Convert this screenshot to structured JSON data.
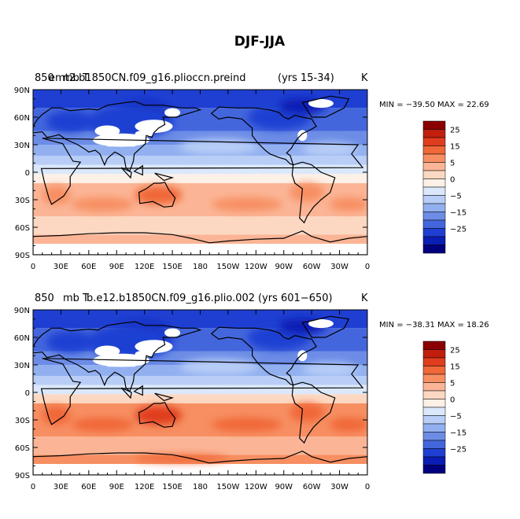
{
  "title": "DJF-JJA",
  "panels": [
    {
      "label_a": "850",
      "label_overlap_a": "mb T",
      "label_overlap_b": "emt2.b1850CN.f09_g16.plioccn.preind",
      "label_tail": "(yrs 15-34)",
      "units": "K",
      "minmax": "MIN = −39.50 MAX =  22.69",
      "variant": 0
    },
    {
      "label_a": "850",
      "label_overlap_a": "mb T",
      "label_overlap_b": "b.e12.b1850CN.f09_g16.plio.002",
      "label_tail": "(yrs 601−650)",
      "units": "K",
      "minmax": "MIN = −38.31 MAX =  18.26",
      "variant": 1
    }
  ],
  "lat_ticks": [
    "90N",
    "60N",
    "30N",
    "0",
    "30S",
    "60S",
    "90S"
  ],
  "lon_ticks": [
    "0",
    "30E",
    "60E",
    "90E",
    "120E",
    "150E",
    "180",
    "150W",
    "120W",
    "90W",
    "60W",
    "30W",
    "0"
  ],
  "colorbar": {
    "labels": [
      "25",
      "15",
      "5",
      "0",
      "−5",
      "−15",
      "−25"
    ],
    "colors": [
      "#8b0000",
      "#c21e0e",
      "#e03c1e",
      "#f06838",
      "#f78f62",
      "#fbb596",
      "#fcd8c2",
      "#fdf0e6",
      "#dbe8fb",
      "#b8cef7",
      "#92b0f0",
      "#6c8ce6",
      "#4466dd",
      "#1f3fd2",
      "#0a1eb4",
      "#00007f"
    ]
  }
}
